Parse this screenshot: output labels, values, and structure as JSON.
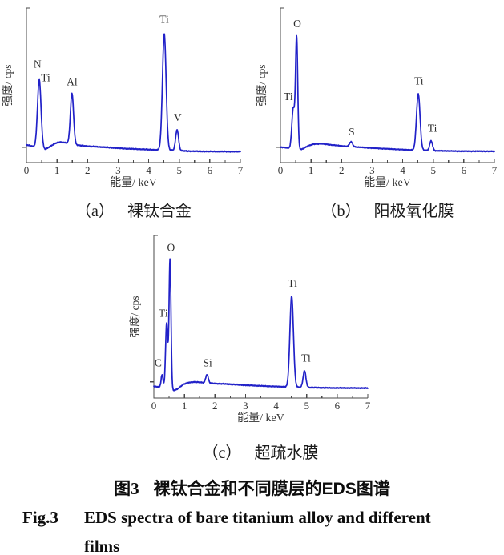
{
  "figure": {
    "caption_cn": {
      "prefix": "图3",
      "text": "裸钛合金和不同膜层的EDS图谱"
    },
    "caption_en": {
      "prefix": "Fig.3",
      "lines": [
        "EDS spectra of bare titanium alloy and different",
        "films"
      ]
    }
  },
  "colors": {
    "curve": "#2121c8",
    "axis": "#4a4a4a",
    "tick_text": "#333333",
    "annotation_text": "#2d2d2d"
  },
  "chart_data": [
    {
      "id": "a",
      "type": "line",
      "subcaption": {
        "tag": "（a）",
        "text": "裸钛合金"
      },
      "xlabel": "能量/ keV",
      "ylabel": "强度/ cps",
      "xlim": [
        0,
        7
      ],
      "ylim": [
        0,
        1
      ],
      "grid": false,
      "legend": "none",
      "x_major_ticks": [
        0,
        1,
        2,
        3,
        4,
        5,
        6,
        7
      ],
      "x_minor_step": 0.5,
      "line_color": "#2121c8",
      "noise": 0.0038,
      "baseline_points": [
        [
          0,
          0.115
        ],
        [
          0.3,
          0.1
        ],
        [
          0.62,
          0.086
        ],
        [
          0.8,
          0.108
        ],
        [
          0.95,
          0.125
        ],
        [
          1.1,
          0.133
        ],
        [
          1.25,
          0.13
        ],
        [
          1.45,
          0.12
        ],
        [
          1.65,
          0.113
        ],
        [
          2.0,
          0.106
        ],
        [
          2.6,
          0.099
        ],
        [
          3.2,
          0.091
        ],
        [
          3.8,
          0.086
        ],
        [
          4.3,
          0.082
        ],
        [
          4.8,
          0.079
        ],
        [
          5.3,
          0.074
        ],
        [
          6.0,
          0.072
        ],
        [
          7,
          0.071
        ]
      ],
      "peaks": [
        {
          "elements": [
            "N",
            "Ti"
          ],
          "center": 0.42,
          "height": 0.44,
          "sigma": 0.058
        },
        {
          "elements": [
            "Al"
          ],
          "center": 1.49,
          "height": 0.33,
          "sigma": 0.052
        },
        {
          "elements": [
            "Ti"
          ],
          "center": 4.51,
          "height": 0.75,
          "sigma": 0.06
        },
        {
          "elements": [
            "V"
          ],
          "center": 4.93,
          "height": 0.135,
          "sigma": 0.048
        }
      ],
      "annotations": [
        {
          "text": "N",
          "x": 0.36,
          "y": 0.615
        },
        {
          "text": "Ti",
          "x": 0.63,
          "y": 0.525
        },
        {
          "text": "Al",
          "x": 1.49,
          "y": 0.5
        },
        {
          "text": "Ti",
          "x": 4.51,
          "y": 0.905
        },
        {
          "text": "V",
          "x": 4.95,
          "y": 0.27
        }
      ]
    },
    {
      "id": "b",
      "type": "line",
      "subcaption": {
        "tag": "（b）",
        "text": "阳极氧化膜"
      },
      "xlabel": "能量/ keV",
      "ylabel": "强度/ cps",
      "xlim": [
        0,
        7
      ],
      "ylim": [
        0,
        1
      ],
      "grid": false,
      "legend": "none",
      "x_major_ticks": [
        0,
        1,
        2,
        3,
        4,
        5,
        6,
        7
      ],
      "x_minor_step": 0.5,
      "line_color": "#2121c8",
      "noise": 0.0036,
      "baseline_points": [
        [
          0,
          0.1
        ],
        [
          0.3,
          0.094
        ],
        [
          0.55,
          0.088
        ],
        [
          0.7,
          0.086
        ],
        [
          0.9,
          0.108
        ],
        [
          1.1,
          0.12
        ],
        [
          1.35,
          0.122
        ],
        [
          1.6,
          0.116
        ],
        [
          1.9,
          0.11
        ],
        [
          2.2,
          0.104
        ],
        [
          2.7,
          0.098
        ],
        [
          3.3,
          0.091
        ],
        [
          3.9,
          0.085
        ],
        [
          4.4,
          0.081
        ],
        [
          5.0,
          0.077
        ],
        [
          5.8,
          0.074
        ],
        [
          7,
          0.073
        ]
      ],
      "peaks": [
        {
          "elements": [
            "Ti"
          ],
          "center": 0.42,
          "height": 0.26,
          "sigma": 0.046
        },
        {
          "elements": [
            "O"
          ],
          "center": 0.53,
          "height": 0.72,
          "sigma": 0.036
        },
        {
          "elements": [
            "S"
          ],
          "center": 2.31,
          "height": 0.032,
          "sigma": 0.05
        },
        {
          "elements": [
            "Ti"
          ],
          "center": 4.51,
          "height": 0.365,
          "sigma": 0.058
        },
        {
          "elements": [
            "Ti"
          ],
          "center": 4.93,
          "height": 0.063,
          "sigma": 0.046
        }
      ],
      "annotations": [
        {
          "text": "Ti",
          "x": 0.26,
          "y": 0.405
        },
        {
          "text": "O",
          "x": 0.55,
          "y": 0.875
        },
        {
          "text": "S",
          "x": 2.33,
          "y": 0.175
        },
        {
          "text": "Ti",
          "x": 4.53,
          "y": 0.505
        },
        {
          "text": "Ti",
          "x": 4.97,
          "y": 0.2
        }
      ]
    },
    {
      "id": "c",
      "type": "line",
      "subcaption": {
        "tag": "（c）",
        "text": "超疏水膜"
      },
      "xlabel": "能量/ keV",
      "ylabel": "强度/ cps",
      "xlim": [
        0,
        7
      ],
      "ylim": [
        0,
        1
      ],
      "grid": false,
      "legend": "none",
      "x_major_ticks": [
        0,
        1,
        2,
        3,
        4,
        5,
        6,
        7
      ],
      "x_minor_step": 0.5,
      "line_color": "#2121c8",
      "noise": 0.0036,
      "baseline_points": [
        [
          0,
          0.072
        ],
        [
          0.25,
          0.066
        ],
        [
          0.45,
          0.06
        ],
        [
          0.65,
          0.046
        ],
        [
          0.78,
          0.056
        ],
        [
          0.95,
          0.082
        ],
        [
          1.1,
          0.094
        ],
        [
          1.3,
          0.099
        ],
        [
          1.55,
          0.096
        ],
        [
          1.9,
          0.09
        ],
        [
          2.4,
          0.086
        ],
        [
          3.0,
          0.079
        ],
        [
          3.7,
          0.073
        ],
        [
          4.3,
          0.069
        ],
        [
          5.0,
          0.065
        ],
        [
          5.8,
          0.062
        ],
        [
          7,
          0.061
        ]
      ],
      "peaks": [
        {
          "elements": [
            "C"
          ],
          "center": 0.27,
          "height": 0.078,
          "sigma": 0.032
        },
        {
          "elements": [
            "Ti"
          ],
          "center": 0.42,
          "height": 0.4,
          "sigma": 0.036
        },
        {
          "elements": [
            "O"
          ],
          "center": 0.53,
          "height": 0.8,
          "sigma": 0.032
        },
        {
          "elements": [
            "Si"
          ],
          "center": 1.74,
          "height": 0.052,
          "sigma": 0.042
        },
        {
          "elements": [
            "Ti"
          ],
          "center": 4.51,
          "height": 0.56,
          "sigma": 0.058
        },
        {
          "elements": [
            "Ti"
          ],
          "center": 4.93,
          "height": 0.102,
          "sigma": 0.046
        }
      ],
      "annotations": [
        {
          "text": "C",
          "x": 0.14,
          "y": 0.195
        },
        {
          "text": "Ti",
          "x": 0.31,
          "y": 0.5
        },
        {
          "text": "O",
          "x": 0.56,
          "y": 0.905
        },
        {
          "text": "Si",
          "x": 1.76,
          "y": 0.195
        },
        {
          "text": "Ti",
          "x": 4.54,
          "y": 0.685
        },
        {
          "text": "Ti",
          "x": 4.98,
          "y": 0.225
        }
      ]
    }
  ]
}
